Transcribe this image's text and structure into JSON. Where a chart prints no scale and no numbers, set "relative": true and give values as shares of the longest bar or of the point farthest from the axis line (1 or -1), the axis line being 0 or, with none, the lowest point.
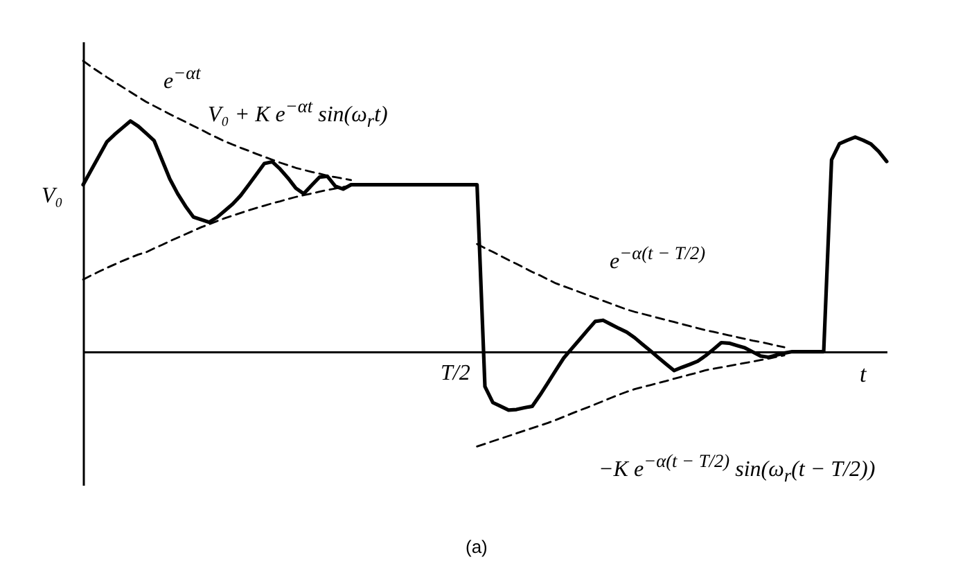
{
  "chart_data": {
    "type": "line",
    "relative": true,
    "xlabel": "t",
    "categories": [
      null,
      null,
      null,
      null,
      null,
      null,
      null,
      null,
      null,
      null,
      null,
      null,
      null,
      null,
      null,
      null,
      null,
      null,
      null,
      null,
      null,
      null,
      null,
      null,
      null,
      null,
      null,
      null,
      null,
      null,
      null,
      null,
      null,
      null,
      null,
      null,
      null,
      null,
      null,
      null,
      null,
      null,
      null,
      null,
      null,
      null,
      null,
      null,
      null,
      null,
      null,
      null,
      null,
      null,
      null,
      null,
      null,
      null,
      null,
      null,
      null,
      null,
      null,
      null,
      null,
      null,
      null,
      null,
      null,
      null,
      null,
      null,
      null,
      null,
      null,
      null,
      null,
      null,
      null,
      null,
      null,
      null,
      null,
      null,
      null,
      null,
      null,
      null,
      null,
      null,
      null,
      null,
      null,
      null,
      null,
      null,
      null,
      null,
      null,
      null,
      null,
      null,
      null
    ],
    "annotations": [
      "V₀",
      "e$^{−αt}$",
      "V₀ + K e$^{−αt}$ sin(ω$_{r}$t)",
      "e$^{−α(t − T/2)}$",
      "−K e$^{−α(t − T/2)}$ sin(ω$_{r}$(t − T/2))",
      "T/2",
      "(a)"
    ],
    "series": [
      {
        "color": "#000000",
        "line_style": "solid",
        "values": [
          0.574,
          0.623,
          0.672,
          0.721,
          0.747,
          0.77,
          0.793,
          0.775,
          0.751,
          0.726,
          0.66,
          0.594,
          0.543,
          0.5,
          0.463,
          0.454,
          0.445,
          0.462,
          0.485,
          0.508,
          0.537,
          0.573,
          0.61,
          0.647,
          0.653,
          0.628,
          0.597,
          0.562,
          0.543,
          0.572,
          0.6,
          0.603,
          0.569,
          0.559,
          0.574,
          0.574,
          0.574,
          0.574,
          0.574,
          0.574,
          0.574,
          0.574,
          0.574,
          0.574,
          0.574,
          0.574,
          0.574,
          0.574,
          0.574,
          0.574,
          0.574,
          -0.12,
          -0.175,
          -0.188,
          -0.201,
          -0.199,
          -0.193,
          -0.188,
          -0.149,
          -0.107,
          -0.064,
          -0.022,
          0.01,
          0.041,
          0.073,
          0.104,
          0.108,
          0.094,
          0.08,
          0.067,
          0.048,
          0.025,
          0.003,
          -0.02,
          -0.043,
          -0.065,
          -0.054,
          -0.044,
          -0.033,
          -0.014,
          0.008,
          0.031,
          0.029,
          0.021,
          0.013,
          -0.001,
          -0.015,
          -0.019,
          -0.012,
          -0.005,
          0,
          0,
          0,
          0,
          0,
          0.66,
          0.715,
          0.727,
          0.738,
          0.727,
          0.714,
          0.688,
          0.654
        ]
      },
      {
        "color": "#000000",
        "line_style": "dashed",
        "values": [
          1,
          0.98,
          0.962,
          0.944,
          0.927,
          0.91,
          0.893,
          0.876,
          0.859,
          0.845,
          0.831,
          0.817,
          0.803,
          0.79,
          0.776,
          0.763,
          0.749,
          0.736,
          0.723,
          0.712,
          0.701,
          0.691,
          0.68,
          0.67,
          0.66,
          0.65,
          0.641,
          0.632,
          0.625,
          0.618,
          0.612,
          0.605,
          0.6,
          0.595,
          0.59,
          null,
          null,
          null,
          null,
          null,
          null,
          null,
          null,
          null,
          null,
          null,
          null,
          null,
          null,
          null,
          null,
          null,
          null,
          null,
          null,
          null,
          null,
          null,
          null,
          null,
          null,
          null,
          null,
          null,
          null,
          null,
          null,
          null,
          null,
          null,
          null,
          null,
          null,
          null,
          null,
          null,
          null,
          null,
          null,
          null,
          null,
          null,
          null,
          null,
          null,
          null,
          null,
          null,
          null,
          null,
          null,
          null,
          null,
          null,
          null,
          null,
          null,
          null,
          null,
          null,
          null,
          null,
          null
        ]
      },
      {
        "color": "#000000",
        "line_style": "dashed",
        "values": [
          0.248,
          0.262,
          0.275,
          0.288,
          0.3,
          0.312,
          0.323,
          0.334,
          0.342,
          0.355,
          0.367,
          0.38,
          0.392,
          0.404,
          0.416,
          0.428,
          0.438,
          0.449,
          0.459,
          0.468,
          0.477,
          0.486,
          0.494,
          0.502,
          0.51,
          0.517,
          0.525,
          0.532,
          0.538,
          0.544,
          0.55,
          0.556,
          0.561,
          0.566,
          0.571,
          null,
          null,
          null,
          null,
          null,
          null,
          null,
          null,
          null,
          null,
          null,
          null,
          null,
          null,
          null,
          null,
          null,
          null,
          null,
          null,
          null,
          null,
          null,
          null,
          null,
          null,
          null,
          null,
          null,
          null,
          null,
          null,
          null,
          null,
          null,
          null,
          null,
          null,
          null,
          null,
          null,
          null,
          null,
          null,
          null,
          null,
          null,
          null,
          null,
          null,
          null,
          null,
          null,
          null,
          null,
          null,
          null,
          null,
          null,
          null,
          null,
          null,
          null,
          null,
          null,
          null,
          null,
          null
        ]
      },
      {
        "color": "#000000",
        "line_style": "dashed",
        "values": [
          null,
          null,
          null,
          null,
          null,
          null,
          null,
          null,
          null,
          null,
          null,
          null,
          null,
          null,
          null,
          null,
          null,
          null,
          null,
          null,
          null,
          null,
          null,
          null,
          null,
          null,
          null,
          null,
          null,
          null,
          null,
          null,
          null,
          null,
          null,
          null,
          null,
          null,
          null,
          null,
          null,
          null,
          null,
          null,
          null,
          null,
          null,
          null,
          null,
          null,
          0.37,
          0.356,
          0.343,
          0.329,
          0.315,
          0.302,
          0.288,
          0.274,
          0.262,
          0.248,
          0.235,
          0.225,
          0.215,
          0.205,
          0.195,
          0.185,
          0.175,
          0.165,
          0.155,
          0.145,
          0.137,
          0.13,
          0.123,
          0.116,
          0.109,
          0.102,
          0.095,
          0.088,
          0.081,
          0.074,
          0.068,
          0.062,
          0.056,
          0.05,
          0.044,
          0.038,
          0.033,
          0.027,
          0.021,
          0.015,
          null,
          null,
          null,
          null,
          null,
          null,
          null,
          null,
          null,
          null,
          null,
          null,
          null
        ]
      },
      {
        "color": "#000000",
        "line_style": "dashed",
        "values": [
          null,
          null,
          null,
          null,
          null,
          null,
          null,
          null,
          null,
          null,
          null,
          null,
          null,
          null,
          null,
          null,
          null,
          null,
          null,
          null,
          null,
          null,
          null,
          null,
          null,
          null,
          null,
          null,
          null,
          null,
          null,
          null,
          null,
          null,
          null,
          null,
          null,
          null,
          null,
          null,
          null,
          null,
          null,
          null,
          null,
          null,
          null,
          null,
          null,
          null,
          -0.326,
          -0.317,
          -0.308,
          -0.299,
          -0.29,
          -0.281,
          -0.272,
          -0.263,
          -0.254,
          -0.245,
          -0.235,
          -0.224,
          -0.213,
          -0.202,
          -0.192,
          -0.181,
          -0.17,
          -0.159,
          -0.148,
          -0.138,
          -0.129,
          -0.122,
          -0.115,
          -0.108,
          -0.101,
          -0.093,
          -0.086,
          -0.079,
          -0.072,
          -0.064,
          -0.059,
          -0.054,
          -0.049,
          -0.044,
          -0.039,
          -0.034,
          -0.029,
          -0.024,
          -0.018,
          -0.013,
          null,
          null,
          null,
          null,
          null,
          null,
          null,
          null,
          null,
          null,
          null,
          null,
          null
        ]
      }
    ]
  }
}
